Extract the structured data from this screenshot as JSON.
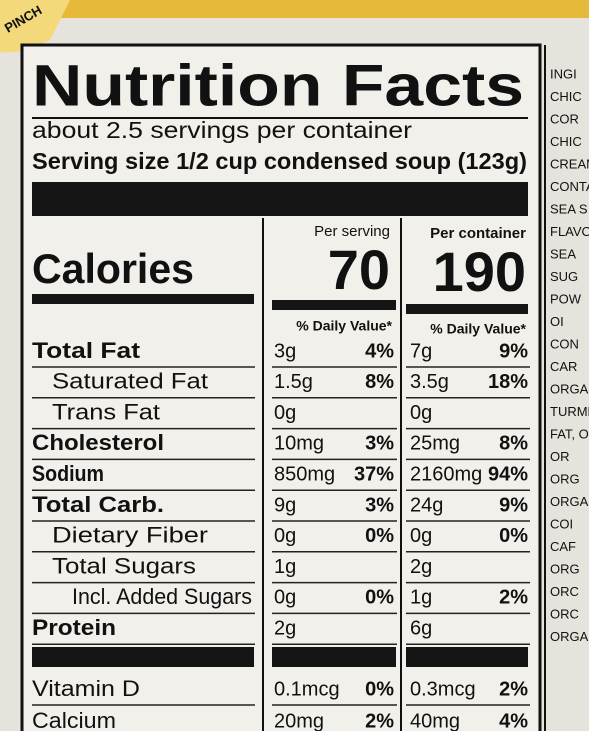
{
  "brand_fragment": "PINCH",
  "title": "Nutrition Facts",
  "servings": "about 2.5 servings per container",
  "serving_size": "Serving size 1/2 cup condensed soup (123g)",
  "columns": {
    "per_serving": "Per serving",
    "per_container": "Per container"
  },
  "calories": {
    "label": "Calories",
    "per_serving": "70",
    "per_container": "190"
  },
  "dv_header": {
    "per_serving": "% Daily Value*",
    "per_container": "% Daily Value*"
  },
  "nutrients": [
    {
      "name": "Total Fat",
      "bold": true,
      "indent": 0,
      "serving_amount": "3g",
      "serving_dv": "4%",
      "container_amount": "7g",
      "container_dv": "9%"
    },
    {
      "name": "Saturated Fat",
      "bold": false,
      "indent": 1,
      "serving_amount": "1.5g",
      "serving_dv": "8%",
      "container_amount": "3.5g",
      "container_dv": "18%"
    },
    {
      "name": "Trans Fat",
      "bold": false,
      "indent": 1,
      "serving_amount": "0g",
      "container_amount": "0g"
    },
    {
      "name": "Cholesterol",
      "bold": true,
      "indent": 0,
      "serving_amount": "10mg",
      "serving_dv": "3%",
      "container_amount": "25mg",
      "container_dv": "8%"
    },
    {
      "name": "Sodium",
      "bold": true,
      "indent": 0,
      "serving_amount": "850mg",
      "serving_dv": "37%",
      "container_amount": "2160mg",
      "container_dv": "94%"
    },
    {
      "name": "Total Carb.",
      "bold": true,
      "indent": 0,
      "serving_amount": "9g",
      "serving_dv": "3%",
      "container_amount": "24g",
      "container_dv": "9%"
    },
    {
      "name": "Dietary Fiber",
      "bold": false,
      "indent": 1,
      "serving_amount": "0g",
      "serving_dv": "0%",
      "container_amount": "0g",
      "container_dv": "0%"
    },
    {
      "name": "Total Sugars",
      "bold": false,
      "indent": 1,
      "serving_amount": "1g",
      "container_amount": "2g"
    },
    {
      "name": "Incl. Added Sugars",
      "bold": false,
      "indent": 2,
      "serving_amount": "0g",
      "serving_dv": "0%",
      "container_amount": "1g",
      "container_dv": "2%"
    },
    {
      "name": "Protein",
      "bold": true,
      "indent": 0,
      "serving_amount": "2g",
      "container_amount": "6g"
    }
  ],
  "vitamins": [
    {
      "name": "Vitamin D",
      "serving_amount": "0.1mcg",
      "serving_dv": "0%",
      "container_amount": "0.3mcg",
      "container_dv": "2%"
    },
    {
      "name": "Calcium",
      "serving_amount": "20mg",
      "serving_dv": "2%",
      "container_amount": "40mg",
      "container_dv": "4%"
    }
  ],
  "ingredients_fragments": [
    "INGI",
    "CHIC",
    "COR",
    "CHIC",
    "CREAM",
    "CONTA",
    "SEA S",
    "FLAVO",
    "SEA",
    "SUG",
    "POW",
    "OI",
    "CON",
    "CAR",
    "ORGA",
    "TURME",
    "FAT, OI",
    "OR",
    "ORG",
    "ORGA",
    "COI",
    "CAF",
    "ORG",
    "ORC",
    "ORC",
    "ORGA"
  ]
}
